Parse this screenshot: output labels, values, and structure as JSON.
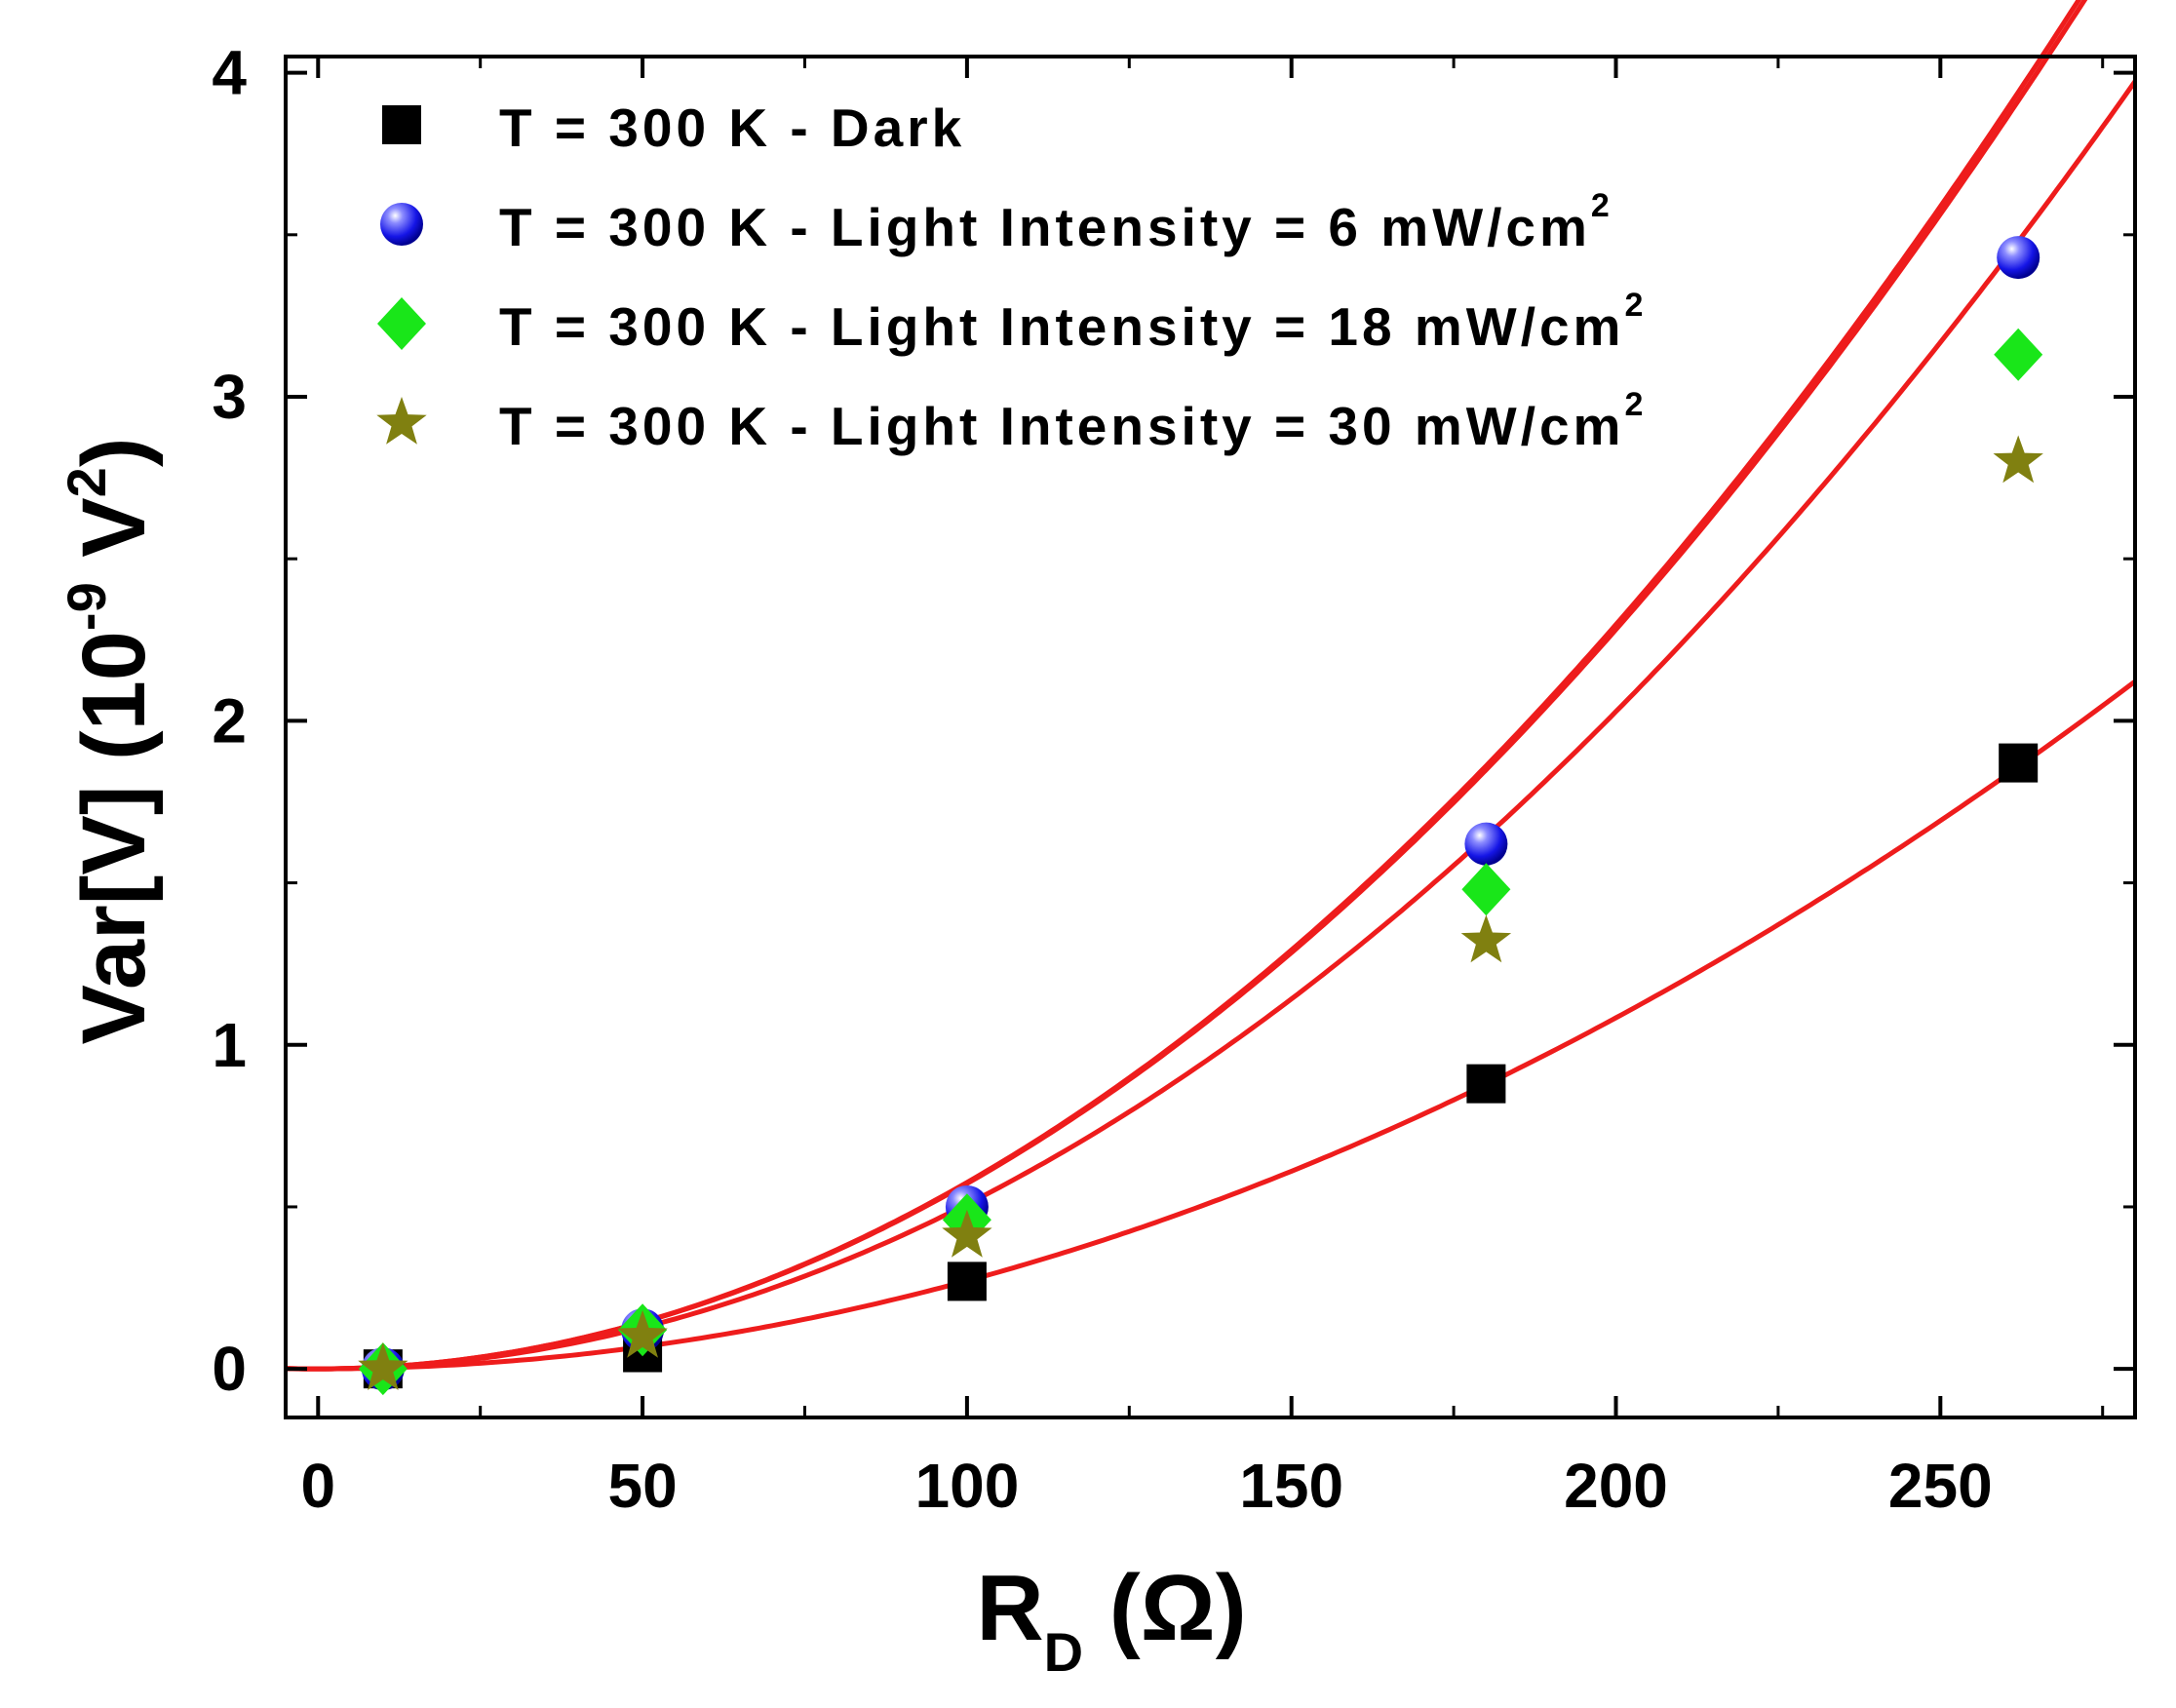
{
  "chart_data": {
    "type": "scatter",
    "xlabel": {
      "main": "R",
      "sub": "D",
      "unit": "(Ω)"
    },
    "ylabel": {
      "main": "Var[V] (10",
      "exp1": "-9",
      "mid": " V",
      "exp2": "2",
      "end": ")"
    },
    "xlim": [
      -5,
      280
    ],
    "ylim": [
      -0.15,
      4.05
    ],
    "xticks": [
      0,
      50,
      100,
      150,
      200,
      250
    ],
    "xtick_labels": [
      "0",
      "50",
      "100",
      "150",
      "200",
      "250"
    ],
    "yticks": [
      0,
      1,
      2,
      3,
      4
    ],
    "ytick_labels": [
      "0",
      "1",
      "2",
      "3",
      "4"
    ],
    "grid": false,
    "legend_position": "top-left",
    "fit_color": "#ee1c1c",
    "series": [
      {
        "name": "T = 300 K  -  Dark",
        "name_sup": "",
        "marker": "square",
        "color": "#000000",
        "x": [
          10,
          50,
          100,
          180,
          262
        ],
        "y": [
          0.0,
          0.05,
          0.27,
          0.88,
          1.87
        ],
        "fit_coef": [
          2.7e-05,
          1.72e-05
        ]
      },
      {
        "name": "T = 300 K  -  Light Intensity = 6 mW/cm",
        "name_sup": "2",
        "marker": "sphere",
        "color": "#1515e6",
        "x": [
          10,
          50,
          100,
          180,
          262
        ],
        "y": [
          0.0,
          0.12,
          0.5,
          1.62,
          3.43
        ],
        "fit_coef": [
          5.69e-05,
          2.89e-05
        ]
      },
      {
        "name": "T = 300 K  -  Light Intensity = 18 mW/cm",
        "name_sup": "2",
        "marker": "diamond",
        "color": "#19e619",
        "x": [
          10,
          50,
          100,
          180,
          262
        ],
        "y": [
          0.0,
          0.12,
          0.46,
          1.48,
          3.13
        ],
        "fit_coef": [
          5.73e-05,
          2.46e-05
        ]
      },
      {
        "name": "T = 300 K  -  Light Intensity = 30 mW/cm",
        "name_sup": "2",
        "marker": "star",
        "color": "#808010",
        "x": [
          10,
          50,
          100,
          180,
          262
        ],
        "y": [
          0.0,
          0.1,
          0.41,
          1.32,
          2.8
        ],
        "fit_coef": [
          5.06e-05,
          2.19e-05
        ]
      }
    ]
  }
}
